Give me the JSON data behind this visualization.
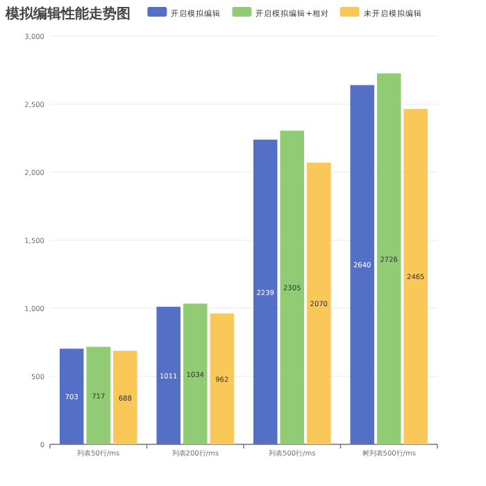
{
  "chart_data": {
    "type": "bar",
    "title": "模拟编辑性能走势图",
    "categories": [
      "列表50行/ms",
      "列表200行/ms",
      "列表500行/ms",
      "树列表500行/ms"
    ],
    "series": [
      {
        "name": "开启模拟编辑",
        "color": "#5470c6",
        "values": [
          703,
          1011,
          2239,
          2640
        ]
      },
      {
        "name": "开启模拟编辑+相对",
        "color": "#91cc75",
        "values": [
          717,
          1034,
          2305,
          2726
        ]
      },
      {
        "name": "未开启模拟编辑",
        "color": "#fac858",
        "values": [
          688,
          962,
          2070,
          2465
        ]
      }
    ],
    "ylim": [
      0,
      3000
    ],
    "yticks": [
      {
        "value": 0,
        "label": "0"
      },
      {
        "value": 500,
        "label": "500"
      },
      {
        "value": 1000,
        "label": "1,000"
      },
      {
        "value": 1500,
        "label": "1,500"
      },
      {
        "value": 2000,
        "label": "2,000"
      },
      {
        "value": 2500,
        "label": "2,500"
      },
      {
        "value": 3000,
        "label": "3,000"
      }
    ],
    "grid": "y",
    "legend": "top",
    "data_labels": true
  }
}
